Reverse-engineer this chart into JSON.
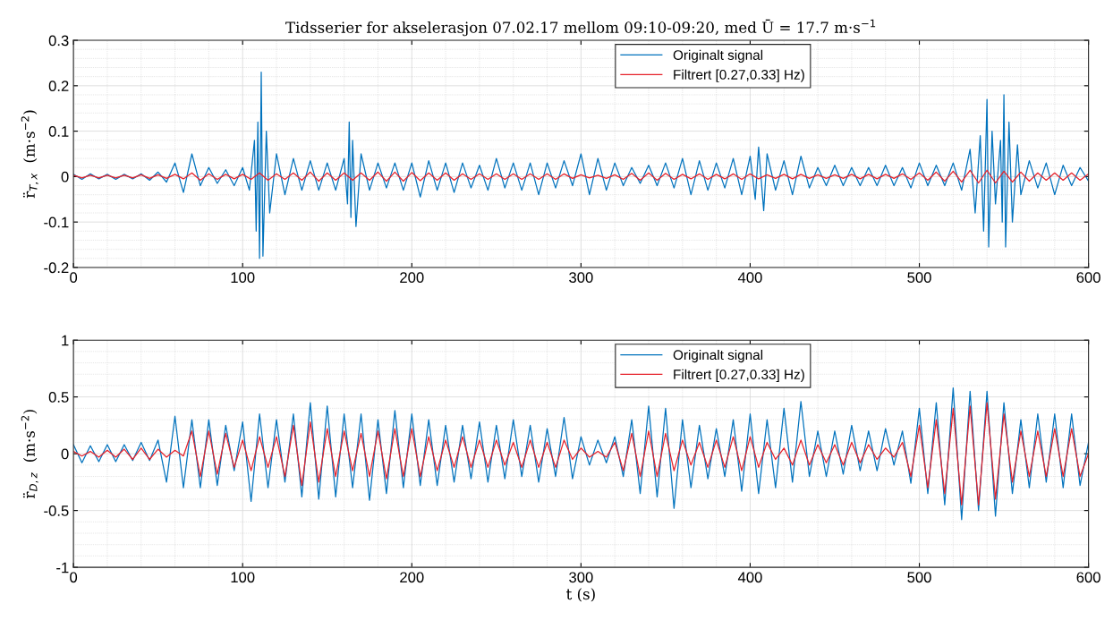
{
  "chart_data": [
    {
      "type": "line",
      "title": "Tidsserier for akselerasjon 07.02.17 mellom 09:10-09:20, med Ū = 17.7 m·s$^{−1}$",
      "ylabel": "r̈$_{T,x}$  (m·s$^{−2}$)",
      "x": [
        0,
        5,
        10,
        15,
        20,
        25,
        30,
        35,
        40,
        45,
        50,
        55,
        60,
        65,
        70,
        75,
        80,
        85,
        90,
        95,
        100,
        105,
        110,
        115,
        120,
        125,
        130,
        135,
        140,
        145,
        150,
        155,
        160,
        165,
        170,
        175,
        180,
        185,
        190,
        195,
        200,
        205,
        210,
        215,
        220,
        225,
        230,
        235,
        240,
        245,
        250,
        255,
        260,
        265,
        270,
        275,
        280,
        285,
        290,
        295,
        300,
        305,
        310,
        315,
        320,
        325,
        330,
        335,
        340,
        345,
        350,
        355,
        360,
        365,
        370,
        375,
        380,
        385,
        390,
        395,
        400,
        405,
        410,
        415,
        420,
        425,
        430,
        435,
        440,
        445,
        450,
        455,
        460,
        465,
        470,
        475,
        480,
        485,
        490,
        495,
        500,
        505,
        510,
        515,
        520,
        525,
        530,
        535,
        540,
        545,
        550,
        555,
        560,
        565,
        570,
        575,
        580,
        585,
        590,
        595,
        600
      ],
      "series": [
        {
          "name": "Originalt signal",
          "color": "#0072bd",
          "x": [
            0,
            5,
            10,
            15,
            20,
            25,
            30,
            35,
            40,
            45,
            50,
            55,
            60,
            65,
            70,
            75,
            80,
            85,
            90,
            95,
            100,
            104,
            107,
            108,
            109,
            110,
            111,
            112,
            114,
            116,
            120,
            125,
            130,
            135,
            140,
            145,
            150,
            155,
            160,
            162,
            163,
            164,
            165,
            167,
            170,
            175,
            180,
            185,
            190,
            195,
            200,
            205,
            210,
            215,
            220,
            225,
            230,
            235,
            240,
            245,
            250,
            255,
            260,
            265,
            270,
            275,
            280,
            285,
            290,
            295,
            300,
            305,
            310,
            315,
            320,
            325,
            330,
            335,
            340,
            345,
            350,
            355,
            360,
            365,
            370,
            375,
            380,
            385,
            390,
            395,
            400,
            403,
            405,
            408,
            410,
            415,
            420,
            425,
            430,
            435,
            440,
            445,
            450,
            455,
            460,
            465,
            470,
            475,
            480,
            485,
            490,
            495,
            500,
            505,
            510,
            515,
            520,
            525,
            530,
            533,
            536,
            538,
            540,
            541,
            543,
            545,
            548,
            549,
            550,
            551,
            553,
            555,
            558,
            560,
            565,
            570,
            575,
            580,
            585,
            590,
            595,
            600
          ],
          "values": [
            0.005,
            -0.006,
            0.006,
            -0.005,
            0.005,
            -0.006,
            0.005,
            -0.005,
            0.006,
            -0.008,
            0.01,
            -0.012,
            0.03,
            -0.035,
            0.05,
            -0.02,
            0.02,
            -0.015,
            0.015,
            -0.02,
            0.02,
            -0.03,
            0.08,
            -0.12,
            0.12,
            -0.18,
            0.23,
            -0.175,
            0.1,
            -0.08,
            0.05,
            -0.04,
            0.04,
            -0.03,
            0.035,
            -0.03,
            0.03,
            -0.03,
            0.04,
            -0.06,
            0.12,
            -0.09,
            0.08,
            -0.11,
            0.05,
            -0.03,
            0.03,
            -0.025,
            0.03,
            -0.03,
            0.03,
            -0.045,
            0.035,
            -0.03,
            0.03,
            -0.035,
            0.03,
            -0.025,
            0.025,
            -0.03,
            0.04,
            -0.025,
            0.03,
            -0.03,
            0.03,
            -0.04,
            0.03,
            -0.025,
            0.035,
            -0.02,
            0.05,
            -0.04,
            0.04,
            -0.03,
            0.03,
            -0.02,
            0.02,
            -0.015,
            0.025,
            -0.02,
            0.03,
            -0.025,
            0.04,
            -0.04,
            0.035,
            -0.03,
            0.03,
            -0.025,
            0.04,
            -0.04,
            0.045,
            -0.05,
            0.065,
            -0.075,
            0.05,
            -0.03,
            0.035,
            -0.04,
            0.045,
            -0.025,
            0.02,
            -0.02,
            0.025,
            -0.02,
            0.02,
            -0.02,
            0.02,
            -0.02,
            0.025,
            -0.02,
            0.02,
            -0.025,
            0.03,
            -0.02,
            0.025,
            -0.02,
            0.03,
            -0.03,
            0.06,
            -0.08,
            0.09,
            -0.12,
            0.17,
            -0.155,
            0.1,
            -0.06,
            0.08,
            -0.1,
            0.18,
            -0.155,
            0.12,
            -0.1,
            0.07,
            -0.04,
            0.035,
            -0.025,
            0.03,
            -0.04,
            0.025,
            -0.02,
            0.02,
            -0.01
          ]
        },
        {
          "name": "Filtrert [0.27,0.33] Hz)",
          "color": "#e6212a",
          "values": [
            0.003,
            -0.003,
            0.003,
            -0.003,
            0.003,
            -0.003,
            0.003,
            -0.003,
            0.004,
            -0.004,
            0.004,
            -0.004,
            0.005,
            -0.005,
            0.008,
            -0.008,
            0.006,
            -0.006,
            0.005,
            -0.005,
            0.005,
            -0.006,
            0.008,
            -0.008,
            0.006,
            -0.006,
            0.008,
            -0.008,
            0.01,
            -0.01,
            0.008,
            -0.008,
            0.008,
            -0.008,
            0.008,
            -0.008,
            0.01,
            -0.01,
            0.01,
            -0.01,
            0.009,
            -0.009,
            0.008,
            -0.008,
            0.008,
            -0.008,
            0.006,
            -0.006,
            0.006,
            -0.006,
            0.006,
            -0.006,
            0.006,
            -0.006,
            0.006,
            -0.006,
            0.006,
            -0.006,
            0.006,
            -0.004,
            0.004,
            -0.003,
            0.003,
            -0.004,
            0.004,
            -0.006,
            0.007,
            -0.008,
            0.008,
            -0.008,
            0.007,
            -0.006,
            0.005,
            -0.005,
            0.006,
            -0.006,
            0.005,
            -0.005,
            0.006,
            -0.006,
            0.006,
            -0.005,
            0.004,
            -0.004,
            0.005,
            -0.005,
            0.005,
            -0.004,
            0.004,
            -0.004,
            0.004,
            -0.004,
            0.005,
            -0.005,
            0.005,
            -0.005,
            0.005,
            -0.004,
            0.006,
            -0.006,
            0.008,
            -0.008,
            0.01,
            -0.01,
            0.012,
            -0.012,
            0.014,
            -0.014,
            0.014,
            -0.014,
            0.012,
            -0.012,
            0.01,
            -0.01,
            0.008,
            -0.008,
            0.008,
            -0.008,
            0.008,
            -0.008,
            0.006
          ]
        }
      ],
      "xlim": [
        0,
        600
      ],
      "xticks": [
        0,
        100,
        200,
        300,
        400,
        500,
        600
      ],
      "ylim": [
        -0.2,
        0.3
      ],
      "yticks": [
        -0.2,
        -0.1,
        0,
        0.1,
        0.2,
        0.3
      ],
      "grid": true,
      "legend": "top",
      "marker": "none",
      "line_style": "solid"
    },
    {
      "type": "line",
      "xlabel": "t (s)",
      "ylabel": "r̈$_{D,z}$  (m·s$^{−2}$)",
      "x": [
        0,
        5,
        10,
        15,
        20,
        25,
        30,
        35,
        40,
        45,
        50,
        55,
        60,
        65,
        70,
        75,
        80,
        85,
        90,
        95,
        100,
        105,
        110,
        115,
        120,
        125,
        130,
        135,
        140,
        145,
        150,
        155,
        160,
        165,
        170,
        175,
        180,
        185,
        190,
        195,
        200,
        205,
        210,
        215,
        220,
        225,
        230,
        235,
        240,
        245,
        250,
        255,
        260,
        265,
        270,
        275,
        280,
        285,
        290,
        295,
        300,
        305,
        310,
        315,
        320,
        325,
        330,
        335,
        340,
        345,
        350,
        355,
        360,
        365,
        370,
        375,
        380,
        385,
        390,
        395,
        400,
        405,
        410,
        415,
        420,
        425,
        430,
        435,
        440,
        445,
        450,
        455,
        460,
        465,
        470,
        475,
        480,
        485,
        490,
        495,
        500,
        505,
        510,
        515,
        520,
        525,
        530,
        535,
        540,
        545,
        550,
        555,
        560,
        565,
        570,
        575,
        580,
        585,
        590,
        595,
        600
      ],
      "series": [
        {
          "name": "Originalt signal",
          "color": "#0072bd",
          "values": [
            0.08,
            -0.08,
            0.07,
            -0.07,
            0.08,
            -0.07,
            0.08,
            -0.06,
            0.1,
            -0.06,
            0.12,
            -0.25,
            0.33,
            -0.3,
            0.3,
            -0.3,
            0.3,
            -0.28,
            0.25,
            -0.15,
            0.28,
            -0.42,
            0.35,
            -0.3,
            0.3,
            -0.25,
            0.35,
            -0.38,
            0.45,
            -0.4,
            0.42,
            -0.38,
            0.35,
            -0.3,
            0.35,
            -0.41,
            0.3,
            -0.35,
            0.38,
            -0.3,
            0.35,
            -0.28,
            0.3,
            -0.28,
            0.25,
            -0.25,
            0.25,
            -0.22,
            0.28,
            -0.25,
            0.25,
            -0.22,
            0.3,
            -0.2,
            0.25,
            -0.25,
            0.22,
            -0.2,
            0.32,
            -0.22,
            0.15,
            -0.1,
            0.12,
            -0.08,
            0.15,
            -0.2,
            0.3,
            -0.35,
            0.42,
            -0.38,
            0.4,
            -0.48,
            0.3,
            -0.3,
            0.25,
            -0.22,
            0.22,
            -0.2,
            0.3,
            -0.33,
            0.35,
            -0.35,
            0.3,
            -0.3,
            0.4,
            -0.25,
            0.46,
            -0.2,
            0.2,
            -0.2,
            0.2,
            -0.18,
            0.25,
            -0.15,
            0.2,
            -0.15,
            0.22,
            -0.1,
            0.2,
            -0.26,
            0.4,
            -0.35,
            0.45,
            -0.45,
            0.58,
            -0.58,
            0.55,
            -0.5,
            0.55,
            -0.55,
            0.45,
            -0.35,
            0.3,
            -0.3,
            0.35,
            -0.25,
            0.35,
            -0.3,
            0.35,
            -0.28,
            0.1
          ]
        },
        {
          "name": "Filtrert [0.27,0.33] Hz)",
          "color": "#e6212a",
          "values": [
            0.02,
            -0.02,
            0.02,
            -0.03,
            0.03,
            -0.03,
            0.04,
            -0.05,
            0.05,
            -0.05,
            0.04,
            -0.03,
            0.03,
            -0.02,
            0.2,
            -0.2,
            0.2,
            -0.18,
            0.18,
            -0.12,
            0.12,
            -0.15,
            0.15,
            -0.12,
            0.15,
            -0.2,
            0.25,
            -0.28,
            0.28,
            -0.25,
            0.22,
            -0.2,
            0.2,
            -0.15,
            0.18,
            -0.2,
            0.2,
            -0.22,
            0.22,
            -0.2,
            0.22,
            -0.2,
            0.15,
            -0.15,
            0.12,
            -0.12,
            0.15,
            -0.12,
            0.12,
            -0.12,
            0.12,
            -0.1,
            0.1,
            -0.12,
            0.12,
            -0.12,
            0.1,
            -0.12,
            0.12,
            -0.05,
            0.05,
            -0.03,
            0.02,
            -0.03,
            0.1,
            -0.15,
            0.18,
            -0.2,
            0.2,
            -0.2,
            0.18,
            -0.15,
            0.12,
            -0.1,
            0.1,
            -0.12,
            0.12,
            -0.12,
            0.15,
            -0.15,
            0.15,
            -0.12,
            0.1,
            -0.05,
            0.05,
            -0.1,
            0.12,
            -0.1,
            0.08,
            -0.08,
            0.08,
            -0.1,
            0.1,
            -0.08,
            0.08,
            -0.05,
            0.05,
            -0.03,
            0.1,
            -0.2,
            0.25,
            -0.3,
            0.3,
            -0.35,
            0.4,
            -0.45,
            0.42,
            -0.45,
            0.45,
            -0.4,
            0.35,
            -0.25,
            0.2,
            -0.2,
            0.2,
            -0.2,
            0.22,
            -0.2,
            0.22,
            -0.2,
            0.0
          ]
        }
      ],
      "xlim": [
        0,
        600
      ],
      "xticks": [
        0,
        100,
        200,
        300,
        400,
        500,
        600
      ],
      "ylim": [
        -1,
        1
      ],
      "yticks": [
        -1,
        -0.5,
        0,
        0.5,
        1
      ],
      "grid": true,
      "legend": "top",
      "marker": "none",
      "line_style": "solid"
    }
  ]
}
